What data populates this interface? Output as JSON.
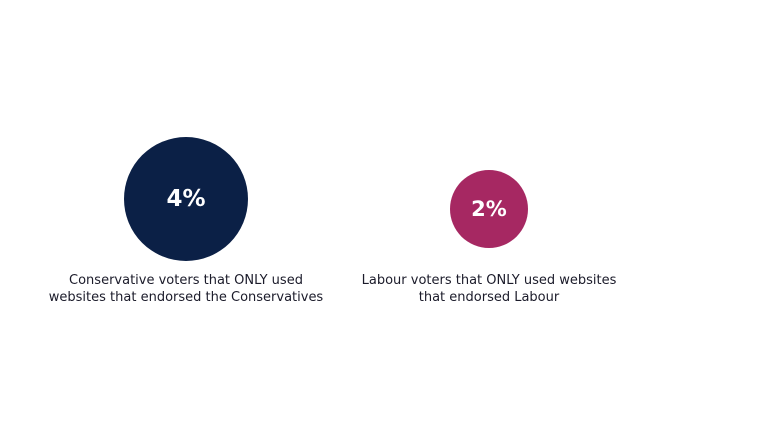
{
  "chart_data": {
    "type": "bubble",
    "title": "",
    "series": [
      {
        "value_label": "4%",
        "value": 4,
        "color": "#0b2046",
        "label_lines": [
          "Conservative voters that ONLY used",
          "websites that endorsed the Conservatives"
        ]
      },
      {
        "value_label": "2%",
        "value": 2,
        "color": "#a62862",
        "label_lines": [
          "Labour voters that ONLY used websites",
          "that endorsed Labour"
        ]
      }
    ]
  }
}
